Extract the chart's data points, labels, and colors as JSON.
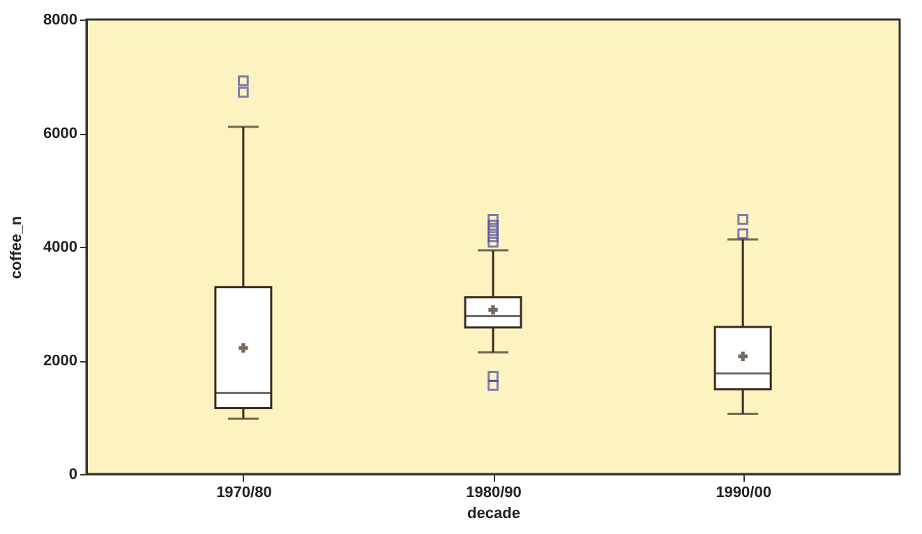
{
  "chart_data": {
    "type": "box",
    "xlabel": "decade",
    "ylabel": "coffee_n",
    "categories": [
      "1970/80",
      "1980/90",
      "1990/00"
    ],
    "boxes": [
      {
        "low": 975,
        "q1": 1160,
        "median": 1430,
        "q3": 3290,
        "high": 6110,
        "mean": 2220,
        "outliers": [
          6720,
          6920
        ]
      },
      {
        "low": 2140,
        "q1": 2580,
        "median": 2780,
        "q3": 3110,
        "high": 3940,
        "mean": 2890,
        "outliers": [
          1560,
          1720,
          4080,
          4180,
          4280,
          4380,
          4480
        ]
      },
      {
        "low": 1060,
        "q1": 1490,
        "median": 1770,
        "q3": 2590,
        "high": 4130,
        "mean": 2070,
        "outliers": [
          4230,
          4480
        ]
      }
    ],
    "color": "#3b2a1c",
    "ylim": [
      0,
      8000
    ],
    "yticks": [
      0,
      2000,
      4000,
      6000,
      8000
    ],
    "grid": false
  }
}
